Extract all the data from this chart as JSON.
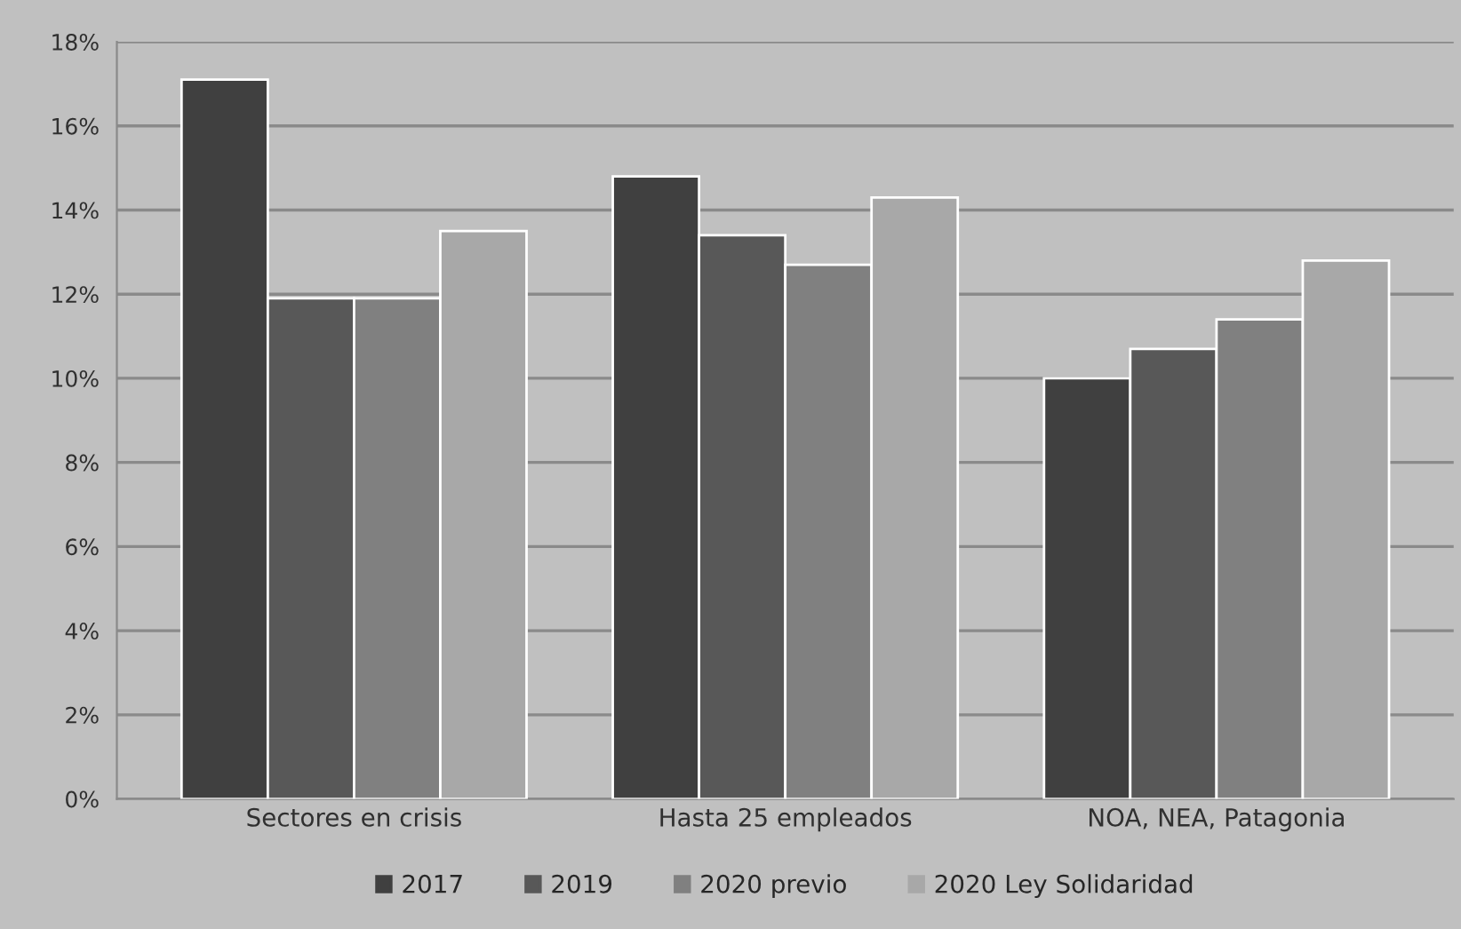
{
  "chart_data": {
    "type": "bar",
    "categories": [
      "Sectores en crisis",
      "Hasta 25 empleados",
      "NOA, NEA, Patagonia"
    ],
    "series": [
      {
        "name": "2017",
        "color": "#404040",
        "values": [
          17.1,
          14.8,
          10.0
        ]
      },
      {
        "name": "2019",
        "color": "#585858",
        "values": [
          11.9,
          13.4,
          10.7
        ]
      },
      {
        "name": "2020 previo",
        "color": "#808080",
        "values": [
          11.9,
          12.7,
          11.4
        ]
      },
      {
        "name": "2020 Ley Solidaridad",
        "color": "#a8a8a8",
        "values": [
          13.5,
          14.3,
          12.8
        ]
      }
    ],
    "ylim": [
      0,
      18
    ],
    "yticks": [
      {
        "value": 0,
        "label": "0%"
      },
      {
        "value": 2,
        "label": "2%"
      },
      {
        "value": 4,
        "label": "4%"
      },
      {
        "value": 6,
        "label": "6%"
      },
      {
        "value": 8,
        "label": "8%"
      },
      {
        "value": 10,
        "label": "10%"
      },
      {
        "value": 12,
        "label": "12%"
      },
      {
        "value": 14,
        "label": "14%"
      },
      {
        "value": 16,
        "label": "16%"
      },
      {
        "value": 18,
        "label": "18%"
      }
    ],
    "grid": "y",
    "legend": "bottom"
  }
}
